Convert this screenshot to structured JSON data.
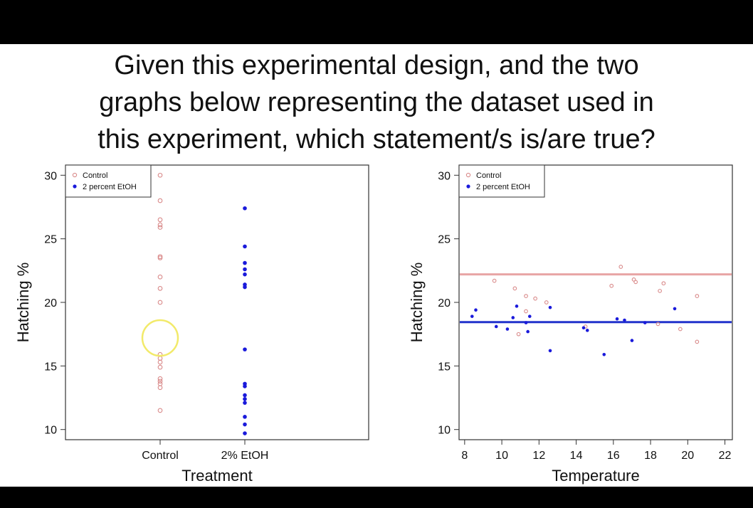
{
  "slide": {
    "title_line1": "Given this experimental design, and the two",
    "title_line2": "graphs below representing the dataset used in",
    "title_line3": "this experiment, which statement/s is/are true?"
  },
  "colors": {
    "control": "#d98a8a",
    "etoh": "#1a1adb",
    "highlight": "#f2ea6a",
    "control_line": "#e8a5a5",
    "etoh_line": "#2233cc"
  },
  "chart_data": [
    {
      "type": "scatter",
      "xlabel": "Treatment",
      "ylabel": "Hatching %",
      "ylim": [
        9.2,
        30.8
      ],
      "yticks": [
        10,
        15,
        20,
        25,
        30
      ],
      "categories": [
        "Control",
        "2% EtOH"
      ],
      "legend": {
        "position": "top-left",
        "entries": [
          "Control",
          "2 percent EtOH"
        ]
      },
      "series": [
        {
          "name": "Control",
          "marker": "open-circle",
          "values": [
            30.0,
            28.0,
            26.5,
            26.1,
            25.9,
            23.6,
            23.5,
            22.0,
            21.1,
            20.0,
            15.9,
            15.6,
            15.3,
            14.9,
            14.0,
            13.8,
            13.6,
            13.3,
            11.5
          ]
        },
        {
          "name": "2 percent EtOH",
          "marker": "filled-circle",
          "values": [
            27.4,
            24.4,
            23.1,
            22.6,
            22.2,
            21.4,
            21.2,
            16.3,
            13.6,
            13.4,
            12.7,
            12.4,
            12.1,
            11.0,
            10.4,
            9.7
          ]
        }
      ],
      "annotation": {
        "type": "highlight-circle",
        "category": "Control",
        "y": 17.2
      }
    },
    {
      "type": "scatter",
      "xlabel": "Temperature",
      "ylabel": "Hatching %",
      "xlim": [
        7.7,
        22.4
      ],
      "ylim": [
        9.2,
        30.8
      ],
      "xticks": [
        8,
        10,
        12,
        14,
        16,
        18,
        20,
        22
      ],
      "yticks": [
        10,
        15,
        20,
        25,
        30
      ],
      "legend": {
        "position": "top-left",
        "entries": [
          "Control",
          "2 percent EtOH"
        ]
      },
      "series": [
        {
          "name": "Control",
          "marker": "open-circle",
          "points": [
            [
              9.6,
              21.7
            ],
            [
              10.7,
              21.1
            ],
            [
              11.3,
              20.5
            ],
            [
              11.8,
              20.3
            ],
            [
              12.4,
              20.0
            ],
            [
              11.3,
              19.3
            ],
            [
              10.9,
              17.5
            ],
            [
              14.5,
              18.1
            ],
            [
              15.9,
              21.3
            ],
            [
              16.4,
              22.8
            ],
            [
              17.1,
              21.8
            ],
            [
              17.2,
              21.6
            ],
            [
              18.5,
              20.9
            ],
            [
              18.7,
              21.5
            ],
            [
              18.4,
              18.3
            ],
            [
              19.6,
              17.9
            ],
            [
              20.5,
              20.5
            ],
            [
              20.5,
              16.9
            ]
          ]
        },
        {
          "name": "2 percent EtOH",
          "marker": "filled-circle",
          "points": [
            [
              8.4,
              18.9
            ],
            [
              8.6,
              19.4
            ],
            [
              9.7,
              18.1
            ],
            [
              10.3,
              17.9
            ],
            [
              10.6,
              18.8
            ],
            [
              10.8,
              19.7
            ],
            [
              11.3,
              18.4
            ],
            [
              11.5,
              18.9
            ],
            [
              11.4,
              17.7
            ],
            [
              12.6,
              19.6
            ],
            [
              12.6,
              16.2
            ],
            [
              14.4,
              18.0
            ],
            [
              14.6,
              17.8
            ],
            [
              15.5,
              15.9
            ],
            [
              16.2,
              18.7
            ],
            [
              16.6,
              18.6
            ],
            [
              17.0,
              17.0
            ],
            [
              17.7,
              18.4
            ],
            [
              19.3,
              19.5
            ]
          ]
        }
      ],
      "reference_lines": [
        {
          "series": "Control",
          "y": 22.2
        },
        {
          "series": "2 percent EtOH",
          "y": 18.45
        }
      ]
    }
  ]
}
